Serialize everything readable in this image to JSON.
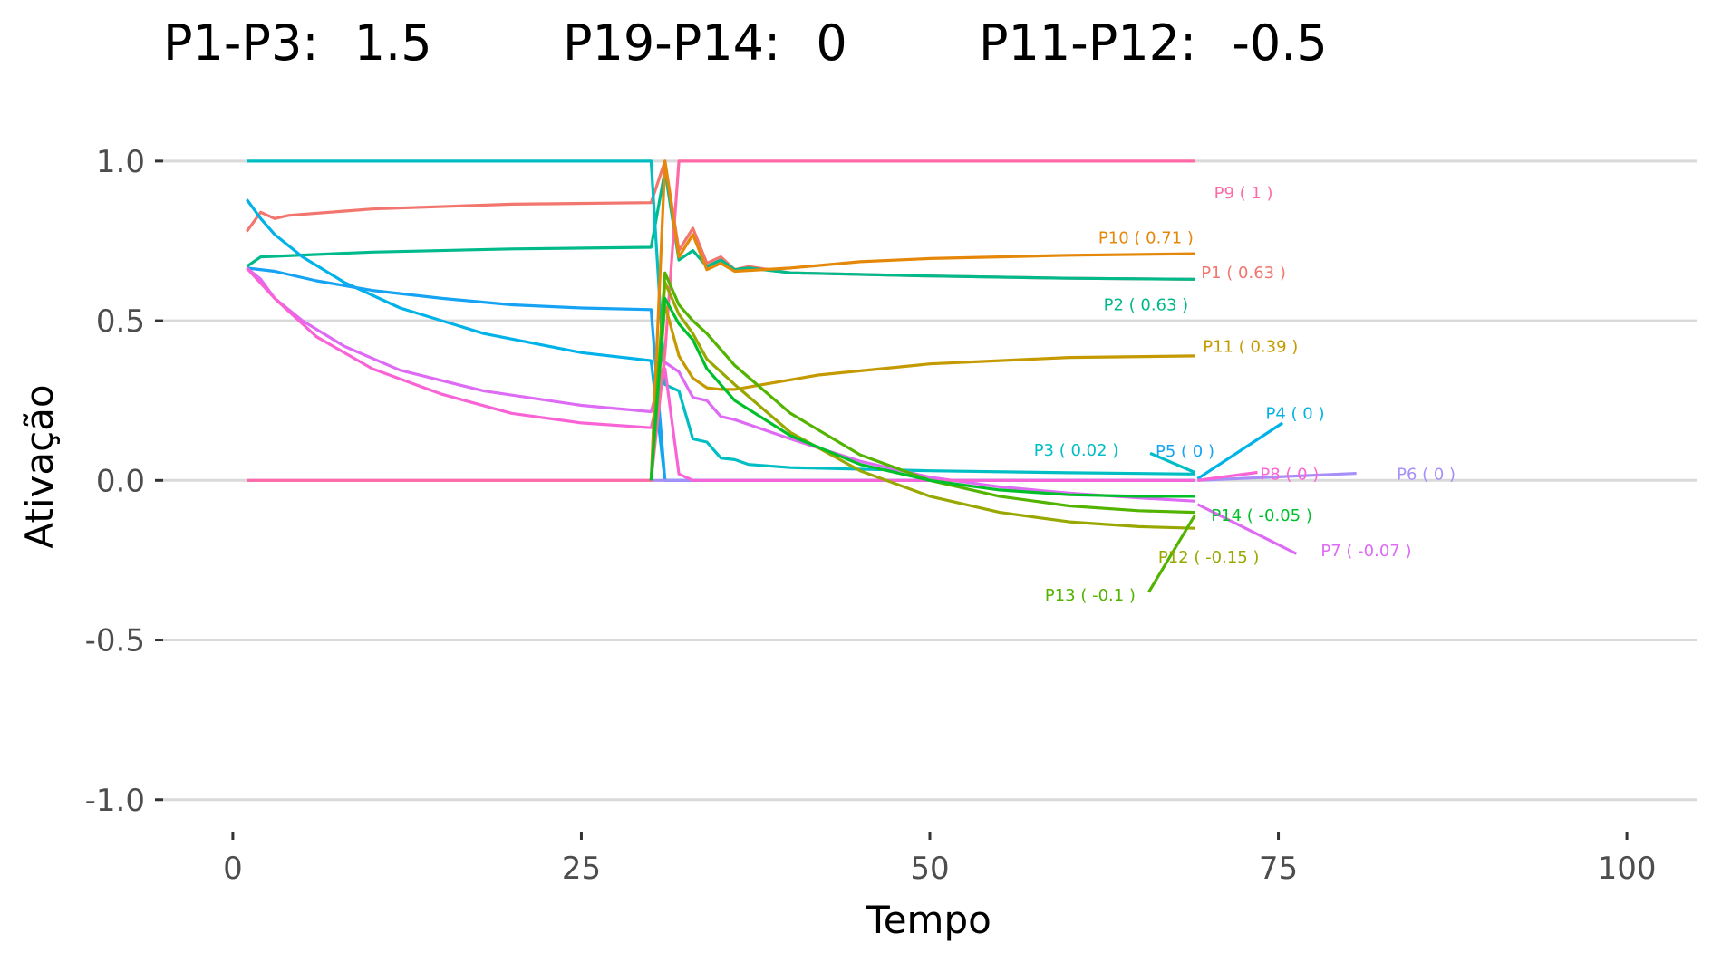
{
  "chart_data": {
    "type": "line",
    "title_parts": [
      {
        "label": "P1-P3:",
        "value": "1.5"
      },
      {
        "label": "P19-P14:",
        "value": "0"
      },
      {
        "label": "P11-P12:",
        "value": "-0.5"
      }
    ],
    "xlabel": "Tempo",
    "ylabel": "Ativação",
    "xlim": [
      -5,
      105
    ],
    "ylim": [
      -1.1,
      1.15
    ],
    "x_ticks": [
      0,
      25,
      50,
      75,
      100
    ],
    "x_tick_labels": [
      "0",
      "25",
      "50",
      "75",
      "100"
    ],
    "y_ticks": [
      1.0,
      0.5,
      0.0,
      -0.5,
      -1.0
    ],
    "y_tick_labels": [
      "1.0",
      "0.5",
      "0.0",
      "-0.5",
      "-1.0"
    ],
    "grid": "horizontal",
    "legend": "none",
    "series": [
      {
        "id": "P1",
        "label": "P1 ( 0.63 )",
        "color": "#F2766E",
        "points": [
          [
            1,
            0.78
          ],
          [
            2,
            0.84
          ],
          [
            3,
            0.82
          ],
          [
            4,
            0.83
          ],
          [
            10,
            0.85
          ],
          [
            20,
            0.865
          ],
          [
            30,
            0.87
          ],
          [
            31,
            1.0
          ],
          [
            32,
            0.72
          ],
          [
            33,
            0.79
          ],
          [
            34,
            0.68
          ],
          [
            35,
            0.7
          ],
          [
            36,
            0.66
          ],
          [
            37,
            0.67
          ],
          [
            40,
            0.65
          ],
          [
            50,
            0.64
          ],
          [
            60,
            0.633
          ],
          [
            69,
            0.63
          ]
        ],
        "label_at": [
          72.5,
          0.65
        ],
        "leader": null
      },
      {
        "id": "P2",
        "label": "P2 ( 0.63 )",
        "color": "#00BA8B",
        "points": [
          [
            1,
            0.67
          ],
          [
            2,
            0.7
          ],
          [
            10,
            0.715
          ],
          [
            20,
            0.725
          ],
          [
            30,
            0.73
          ],
          [
            31,
            0.97
          ],
          [
            32,
            0.69
          ],
          [
            33,
            0.72
          ],
          [
            34,
            0.67
          ],
          [
            35,
            0.69
          ],
          [
            36,
            0.66
          ],
          [
            37,
            0.665
          ],
          [
            40,
            0.65
          ],
          [
            50,
            0.64
          ],
          [
            60,
            0.633
          ],
          [
            69,
            0.63
          ]
        ],
        "label_at": [
          65.5,
          0.55
        ],
        "leader": null
      },
      {
        "id": "P3",
        "label": "P3 ( 0.02 )",
        "color": "#00BEC4",
        "points": [
          [
            1,
            1.0
          ],
          [
            30,
            1.0
          ],
          [
            31,
            0.3
          ],
          [
            32,
            0.28
          ],
          [
            33,
            0.13
          ],
          [
            34,
            0.12
          ],
          [
            35,
            0.07
          ],
          [
            36,
            0.065
          ],
          [
            37,
            0.05
          ],
          [
            40,
            0.04
          ],
          [
            50,
            0.03
          ],
          [
            60,
            0.024
          ],
          [
            69,
            0.02
          ]
        ],
        "label_at": [
          60.5,
          0.095
        ],
        "leader": [
          [
            65.8,
            0.085
          ],
          [
            69,
            0.025
          ]
        ]
      },
      {
        "id": "P4",
        "label": "P4 ( 0 )",
        "color": "#00B2E8",
        "points": [
          [
            1,
            0.88
          ],
          [
            2,
            0.82
          ],
          [
            3,
            0.77
          ],
          [
            5,
            0.7
          ],
          [
            8,
            0.62
          ],
          [
            12,
            0.54
          ],
          [
            18,
            0.46
          ],
          [
            25,
            0.4
          ],
          [
            30,
            0.375
          ],
          [
            31,
            0.0
          ],
          [
            69,
            0.0
          ]
        ],
        "label_at": [
          76.2,
          0.21
        ],
        "leader": [
          [
            69.2,
            0.005
          ],
          [
            75.3,
            0.18
          ]
        ]
      },
      {
        "id": "P5",
        "label": "P5 ( 0 )",
        "color": "#16A3F3",
        "points": [
          [
            1,
            0.665
          ],
          [
            3,
            0.655
          ],
          [
            6,
            0.625
          ],
          [
            10,
            0.595
          ],
          [
            15,
            0.57
          ],
          [
            20,
            0.55
          ],
          [
            25,
            0.54
          ],
          [
            30,
            0.535
          ],
          [
            31,
            0.0
          ],
          [
            69,
            0.0
          ]
        ],
        "label_at": [
          68.3,
          0.092
        ],
        "leader": null
      },
      {
        "id": "P6",
        "label": "P6 ( 0 )",
        "color": "#A88FF7",
        "points": [
          [
            1,
            0.0
          ],
          [
            69,
            0.0
          ]
        ],
        "label_at": [
          85.6,
          0.02
        ],
        "leader": [
          [
            69.2,
            0.0
          ],
          [
            80.6,
            0.022
          ]
        ]
      },
      {
        "id": "P7",
        "label": "P7 ( -0.07 )",
        "color": "#DD6BF3",
        "points": [
          [
            1,
            0.665
          ],
          [
            2,
            0.63
          ],
          [
            3,
            0.57
          ],
          [
            5,
            0.5
          ],
          [
            8,
            0.42
          ],
          [
            12,
            0.345
          ],
          [
            18,
            0.28
          ],
          [
            25,
            0.235
          ],
          [
            30,
            0.215
          ],
          [
            31,
            0.37
          ],
          [
            32,
            0.34
          ],
          [
            33,
            0.26
          ],
          [
            34,
            0.25
          ],
          [
            35,
            0.2
          ],
          [
            36,
            0.19
          ],
          [
            40,
            0.13
          ],
          [
            45,
            0.06
          ],
          [
            50,
            0.01
          ],
          [
            55,
            -0.02
          ],
          [
            60,
            -0.04
          ],
          [
            65,
            -0.055
          ],
          [
            69,
            -0.065
          ]
        ],
        "label_at": [
          81.3,
          -0.22
        ],
        "leader": [
          [
            69.2,
            -0.075
          ],
          [
            76.3,
            -0.23
          ]
        ]
      },
      {
        "id": "P8",
        "label": "P8 ( 0 )",
        "color": "#FA63D6",
        "points": [
          [
            1,
            0.665
          ],
          [
            3,
            0.57
          ],
          [
            6,
            0.45
          ],
          [
            10,
            0.35
          ],
          [
            15,
            0.27
          ],
          [
            20,
            0.21
          ],
          [
            25,
            0.18
          ],
          [
            30,
            0.165
          ],
          [
            31,
            0.35
          ],
          [
            32,
            0.02
          ],
          [
            33,
            0.0
          ],
          [
            69,
            0.0
          ]
        ],
        "label_at": [
          75.8,
          0.02
        ],
        "leader": [
          [
            69.2,
            0.0
          ],
          [
            73.5,
            0.025
          ]
        ]
      },
      {
        "id": "P9",
        "label": "P9 ( 1 )",
        "color": "#FF6AA6",
        "points": [
          [
            1,
            0.0
          ],
          [
            30,
            0.0
          ],
          [
            31,
            0.4
          ],
          [
            32,
            1.0
          ],
          [
            69,
            1.0
          ]
        ],
        "label_at": [
          72.5,
          0.9
        ],
        "leader": null
      },
      {
        "id": "P10",
        "label": "P10 ( 0.71 )",
        "color": "#E58708",
        "points": [
          [
            30,
            0.0
          ],
          [
            31,
            1.0
          ],
          [
            32,
            0.7
          ],
          [
            33,
            0.77
          ],
          [
            34,
            0.66
          ],
          [
            35,
            0.68
          ],
          [
            36,
            0.655
          ],
          [
            40,
            0.665
          ],
          [
            45,
            0.685
          ],
          [
            50,
            0.695
          ],
          [
            55,
            0.7
          ],
          [
            60,
            0.705
          ],
          [
            69,
            0.71
          ]
        ],
        "label_at": [
          65.5,
          0.76
        ],
        "leader": null
      },
      {
        "id": "P11",
        "label": "P11 ( 0.39 )",
        "color": "#C49A00",
        "points": [
          [
            30,
            0.0
          ],
          [
            31,
            0.55
          ],
          [
            32,
            0.39
          ],
          [
            33,
            0.32
          ],
          [
            34,
            0.29
          ],
          [
            35,
            0.285
          ],
          [
            36,
            0.285
          ],
          [
            38,
            0.3
          ],
          [
            42,
            0.33
          ],
          [
            50,
            0.365
          ],
          [
            60,
            0.385
          ],
          [
            69,
            0.39
          ]
        ],
        "label_at": [
          73.0,
          0.42
        ],
        "leader": null
      },
      {
        "id": "P12",
        "label": "P12 ( -0.15 )",
        "color": "#99A800",
        "points": [
          [
            30,
            0.0
          ],
          [
            31,
            0.62
          ],
          [
            32,
            0.52
          ],
          [
            33,
            0.46
          ],
          [
            34,
            0.38
          ],
          [
            36,
            0.3
          ],
          [
            40,
            0.15
          ],
          [
            45,
            0.03
          ],
          [
            50,
            -0.05
          ],
          [
            55,
            -0.1
          ],
          [
            60,
            -0.13
          ],
          [
            65,
            -0.145
          ],
          [
            69,
            -0.15
          ]
        ],
        "label_at": [
          70.0,
          -0.24
        ],
        "leader": null
      },
      {
        "id": "P13",
        "label": "P13 ( -0.1 )",
        "color": "#53B400",
        "points": [
          [
            30,
            0.0
          ],
          [
            31,
            0.65
          ],
          [
            32,
            0.55
          ],
          [
            33,
            0.5
          ],
          [
            34,
            0.46
          ],
          [
            36,
            0.36
          ],
          [
            40,
            0.21
          ],
          [
            45,
            0.08
          ],
          [
            50,
            0.0
          ],
          [
            55,
            -0.05
          ],
          [
            60,
            -0.08
          ],
          [
            65,
            -0.095
          ],
          [
            69,
            -0.1
          ]
        ],
        "label_at": [
          61.5,
          -0.36
        ],
        "leader": [
          [
            65.7,
            -0.35
          ],
          [
            69,
            -0.11
          ]
        ]
      },
      {
        "id": "P14",
        "label": "P14 ( -0.05 )",
        "color": "#00C02A",
        "points": [
          [
            30,
            0.0
          ],
          [
            31,
            0.57
          ],
          [
            32,
            0.49
          ],
          [
            33,
            0.44
          ],
          [
            34,
            0.35
          ],
          [
            36,
            0.25
          ],
          [
            40,
            0.14
          ],
          [
            45,
            0.05
          ],
          [
            50,
            0.0
          ],
          [
            55,
            -0.03
          ],
          [
            60,
            -0.045
          ],
          [
            65,
            -0.05
          ],
          [
            69,
            -0.05
          ]
        ],
        "label_at": [
          73.8,
          -0.11
        ],
        "leader": null
      }
    ]
  }
}
